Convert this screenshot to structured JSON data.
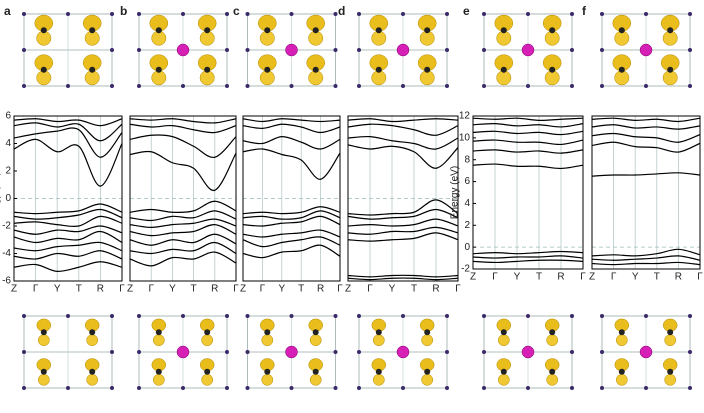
{
  "chart_data": [
    {
      "type": "line",
      "panel_label": "a",
      "ylabel": "Energy (eV)",
      "color": "#000000",
      "hline": 0,
      "categories": [
        "Z",
        "Γ",
        "Y",
        "T",
        "R",
        "Γ"
      ],
      "ylim": [
        -6,
        6
      ],
      "yticks": [
        -6,
        -4,
        -2,
        0,
        2,
        4,
        6
      ],
      "series": [
        {
          "values": [
            5.7,
            5.8,
            5.6,
            5.7,
            5.3,
            5.8
          ]
        },
        {
          "values": [
            5.3,
            5.5,
            5.2,
            5.4,
            4.2,
            5.4
          ]
        },
        {
          "values": [
            4.4,
            4.7,
            4.9,
            5.0,
            3.0,
            4.8
          ]
        },
        {
          "values": [
            3.6,
            4.3,
            3.4,
            3.8,
            0.9,
            4.0
          ]
        },
        {
          "values": [
            -1.0,
            -1.1,
            -1.0,
            -0.9,
            -0.4,
            -1.0
          ]
        },
        {
          "values": [
            -1.3,
            -1.5,
            -1.4,
            -1.2,
            -0.8,
            -1.4
          ]
        },
        {
          "values": [
            -1.8,
            -1.7,
            -1.9,
            -2.0,
            -1.3,
            -1.8
          ]
        },
        {
          "values": [
            -2.3,
            -2.6,
            -2.3,
            -2.4,
            -2.0,
            -2.5
          ]
        },
        {
          "values": [
            -2.8,
            -3.2,
            -2.9,
            -3.0,
            -2.4,
            -3.2
          ]
        },
        {
          "values": [
            -3.6,
            -3.8,
            -3.5,
            -3.4,
            -3.2,
            -3.8
          ]
        },
        {
          "values": [
            -4.2,
            -4.4,
            -4.0,
            -4.2,
            -3.8,
            -4.4
          ]
        },
        {
          "values": [
            -5.0,
            -4.8,
            -5.3,
            -5.0,
            -4.6,
            -5.0
          ]
        }
      ]
    },
    {
      "type": "line",
      "panel_label": "b",
      "color": "#000000",
      "hline": 0,
      "categories": [
        "Z",
        "Γ",
        "Y",
        "T",
        "R",
        "Γ"
      ],
      "ylim": [
        -6,
        6
      ],
      "series": [
        {
          "values": [
            5.8,
            5.7,
            5.8,
            5.6,
            5.5,
            5.8
          ]
        },
        {
          "values": [
            5.4,
            5.2,
            5.3,
            5.0,
            4.8,
            5.3
          ]
        },
        {
          "values": [
            4.3,
            4.6,
            4.5,
            3.8,
            3.0,
            4.5
          ]
        },
        {
          "values": [
            3.2,
            3.4,
            2.6,
            2.2,
            0.6,
            3.3
          ]
        },
        {
          "values": [
            -1.0,
            -0.8,
            -1.0,
            -0.9,
            -0.2,
            -0.9
          ]
        },
        {
          "values": [
            -1.4,
            -1.6,
            -1.3,
            -1.4,
            -0.9,
            -1.5
          ]
        },
        {
          "values": [
            -1.9,
            -2.1,
            -1.9,
            -1.8,
            -1.5,
            -2.0
          ]
        },
        {
          "values": [
            -2.4,
            -2.7,
            -2.5,
            -2.4,
            -1.9,
            -2.6
          ]
        },
        {
          "values": [
            -3.0,
            -3.4,
            -3.0,
            -3.2,
            -2.6,
            -3.3
          ]
        },
        {
          "values": [
            -3.8,
            -4.0,
            -3.7,
            -3.8,
            -3.2,
            -4.0
          ]
        },
        {
          "values": [
            -4.4,
            -4.9,
            -4.3,
            -4.4,
            -3.9,
            -4.7
          ]
        }
      ]
    },
    {
      "type": "line",
      "panel_label": "c",
      "color": "#000000",
      "hline": 0,
      "categories": [
        "Z",
        "Γ",
        "Y",
        "T",
        "R",
        "Γ"
      ],
      "ylim": [
        -6,
        6
      ],
      "series": [
        {
          "values": [
            5.8,
            5.6,
            5.8,
            5.7,
            5.6,
            5.7
          ]
        },
        {
          "values": [
            5.3,
            5.1,
            5.4,
            5.2,
            4.8,
            5.2
          ]
        },
        {
          "values": [
            4.2,
            4.0,
            4.5,
            4.1,
            3.6,
            4.3
          ]
        },
        {
          "values": [
            3.4,
            3.6,
            3.2,
            2.8,
            1.4,
            3.3
          ]
        },
        {
          "values": [
            -1.1,
            -1.0,
            -1.1,
            -1.0,
            -0.6,
            -1.0
          ]
        },
        {
          "values": [
            -1.4,
            -1.3,
            -1.5,
            -1.4,
            -0.9,
            -1.4
          ]
        },
        {
          "values": [
            -1.9,
            -2.0,
            -1.8,
            -1.7,
            -1.3,
            -1.9
          ]
        },
        {
          "values": [
            -2.6,
            -2.8,
            -2.6,
            -2.5,
            -2.3,
            -2.8
          ]
        },
        {
          "values": [
            -3.0,
            -3.5,
            -3.2,
            -3.0,
            -2.8,
            -3.4
          ]
        },
        {
          "values": [
            -4.0,
            -4.3,
            -3.9,
            -3.8,
            -3.4,
            -4.2
          ]
        }
      ]
    },
    {
      "type": "line",
      "panel_label": "d",
      "color": "#000000",
      "hline": 0,
      "categories": [
        "Z",
        "Γ",
        "Y",
        "T",
        "R",
        "Γ"
      ],
      "ylim": [
        -6,
        6
      ],
      "series": [
        {
          "values": [
            5.7,
            5.8,
            5.6,
            5.7,
            5.8,
            5.7
          ]
        },
        {
          "values": [
            5.2,
            5.4,
            5.3,
            5.0,
            4.6,
            5.3
          ]
        },
        {
          "values": [
            4.4,
            4.5,
            4.2,
            4.0,
            3.6,
            4.4
          ]
        },
        {
          "values": [
            3.9,
            3.6,
            3.8,
            3.4,
            2.2,
            3.7
          ]
        },
        {
          "values": [
            -1.1,
            -1.2,
            -1.1,
            -1.0,
            -0.1,
            -1.1
          ]
        },
        {
          "values": [
            -1.3,
            -1.5,
            -1.4,
            -1.3,
            -0.8,
            -1.4
          ]
        },
        {
          "values": [
            -2.0,
            -1.9,
            -2.0,
            -1.9,
            -1.5,
            -2.0
          ]
        },
        {
          "values": [
            -2.5,
            -2.6,
            -2.4,
            -2.4,
            -2.1,
            -2.5
          ]
        },
        {
          "values": [
            -3.0,
            -3.1,
            -3.0,
            -2.9,
            -2.5,
            -3.0
          ]
        },
        {
          "values": [
            -5.6,
            -5.7,
            -5.6,
            -5.6,
            -5.7,
            -5.6
          ]
        },
        {
          "values": [
            -5.8,
            -5.9,
            -5.8,
            -5.8,
            -5.9,
            -5.8
          ]
        }
      ]
    },
    {
      "type": "line",
      "panel_label": "e",
      "ylabel": "Energy (eV)",
      "color": "#000000",
      "hline": 0,
      "categories": [
        "Z",
        "Γ",
        "Y",
        "T",
        "R",
        "Γ"
      ],
      "ylim": [
        -2,
        12
      ],
      "yticks": [
        -2,
        0,
        2,
        4,
        6,
        8,
        10,
        12
      ],
      "series": [
        {
          "values": [
            11.8,
            11.7,
            11.8,
            11.6,
            11.7,
            11.8
          ]
        },
        {
          "values": [
            11.2,
            11.3,
            11.1,
            11.2,
            11.0,
            11.3
          ]
        },
        {
          "values": [
            10.5,
            10.6,
            10.4,
            10.5,
            10.3,
            10.6
          ]
        },
        {
          "values": [
            9.7,
            9.8,
            9.6,
            9.6,
            9.4,
            9.8
          ]
        },
        {
          "values": [
            8.8,
            8.9,
            8.7,
            8.8,
            8.6,
            8.9
          ]
        },
        {
          "values": [
            7.5,
            7.6,
            7.4,
            7.4,
            7.2,
            7.5
          ]
        },
        {
          "values": [
            -0.6,
            -0.5,
            -0.6,
            -0.5,
            -0.4,
            -0.5
          ]
        },
        {
          "values": [
            -0.9,
            -1.0,
            -0.9,
            -0.9,
            -0.8,
            -1.0
          ]
        },
        {
          "values": [
            -1.3,
            -1.4,
            -1.3,
            -1.2,
            -1.2,
            -1.3
          ]
        }
      ]
    },
    {
      "type": "line",
      "panel_label": "f",
      "color": "#000000",
      "hline": 0,
      "categories": [
        "Z",
        "Γ",
        "Y",
        "T",
        "R",
        "Γ"
      ],
      "ylim": [
        -2,
        12
      ],
      "series": [
        {
          "values": [
            11.7,
            11.8,
            11.6,
            11.7,
            11.5,
            11.8
          ]
        },
        {
          "values": [
            11.0,
            11.2,
            10.9,
            11.0,
            10.8,
            11.1
          ]
        },
        {
          "values": [
            10.2,
            10.4,
            10.1,
            10.0,
            9.6,
            10.3
          ]
        },
        {
          "values": [
            9.3,
            9.6,
            9.2,
            9.1,
            8.7,
            9.5
          ]
        },
        {
          "values": [
            6.5,
            6.6,
            6.6,
            6.7,
            6.8,
            6.6
          ]
        },
        {
          "values": [
            -0.8,
            -0.7,
            -0.8,
            -0.6,
            -0.2,
            -0.7
          ]
        },
        {
          "values": [
            -1.1,
            -1.2,
            -1.1,
            -1.0,
            -0.8,
            -1.2
          ]
        },
        {
          "values": [
            -1.5,
            -1.6,
            -1.5,
            -1.5,
            -1.4,
            -1.6
          ]
        }
      ]
    }
  ]
}
